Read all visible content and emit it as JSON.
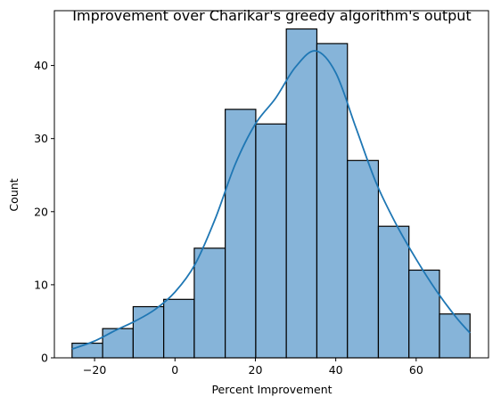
{
  "chart_data": {
    "type": "bar",
    "title": "Improvement over Charikar's greedy algorithm's output",
    "xlabel": "Percent Improvement",
    "ylabel": "Count",
    "xlim": [
      -30,
      78
    ],
    "ylim": [
      0,
      47.5
    ],
    "xticks": [
      -20,
      0,
      20,
      40,
      60
    ],
    "xtick_labels": [
      "−20",
      "0",
      "20",
      "40",
      "60"
    ],
    "yticks": [
      0,
      10,
      20,
      30,
      40
    ],
    "ytick_labels": [
      "0",
      "10",
      "20",
      "30",
      "40"
    ],
    "bin_edges": [
      -25.6,
      -18.0,
      -10.4,
      -2.8,
      4.8,
      12.5,
      20.1,
      27.7,
      35.3,
      42.9,
      50.6,
      58.2,
      65.8,
      73.4
    ],
    "values": [
      2,
      4,
      7,
      8,
      15,
      34,
      32,
      45,
      43,
      27,
      18,
      12,
      6
    ],
    "series": [
      {
        "type": "kde",
        "x": [
          -25.6,
          -20,
          -15,
          -10,
          -5,
          0,
          5,
          10,
          15,
          20,
          25,
          30,
          35,
          40,
          45,
          50,
          55,
          60,
          65,
          70,
          73.4
        ],
        "values": [
          1.2,
          2.3,
          3.7,
          5.0,
          6.6,
          9.0,
          12.8,
          19.0,
          26.5,
          32.0,
          35.5,
          39.8,
          42.0,
          39.0,
          31.5,
          24.0,
          18.3,
          13.5,
          9.2,
          5.5,
          3.4
        ]
      }
    ],
    "grid": false,
    "colors": {
      "bar_fill": "#86b4d9",
      "bar_edge": "#000000",
      "kde_line": "#1f77b4"
    }
  }
}
